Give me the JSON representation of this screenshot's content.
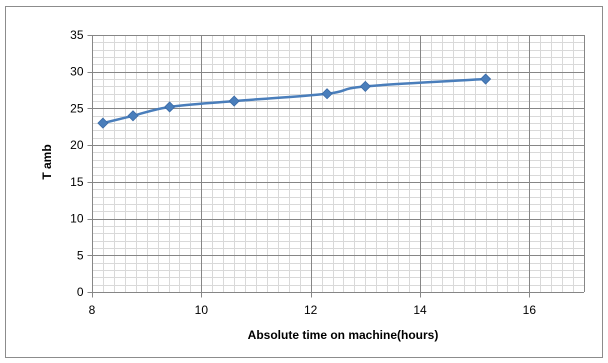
{
  "chart_data": {
    "type": "line",
    "title": "",
    "xlabel": "Absolute time on machine(hours)",
    "ylabel": "T amb",
    "xlim": [
      8,
      17
    ],
    "ylim": [
      0,
      35
    ],
    "x_major_ticks": [
      8,
      10,
      12,
      14,
      16
    ],
    "y_major_ticks": [
      0,
      5,
      10,
      15,
      20,
      25,
      30,
      35
    ],
    "x_minor_step": 0.2,
    "y_minor_step": 1,
    "grid": true,
    "legend": "none",
    "series": [
      {
        "color": "#4a7ebb",
        "marker": "diamond",
        "x": [
          8.2,
          8.75,
          9.42,
          10.6,
          12.3,
          13.0,
          15.2
        ],
        "y": [
          23.0,
          24.0,
          25.2,
          26.0,
          27.0,
          28.0,
          29.0
        ]
      }
    ]
  },
  "colors": {
    "series_line": "#4a7ebb",
    "grid_major": "#868686",
    "grid_minor": "#d9d9d9",
    "frame_border": "#8c8c8c"
  }
}
